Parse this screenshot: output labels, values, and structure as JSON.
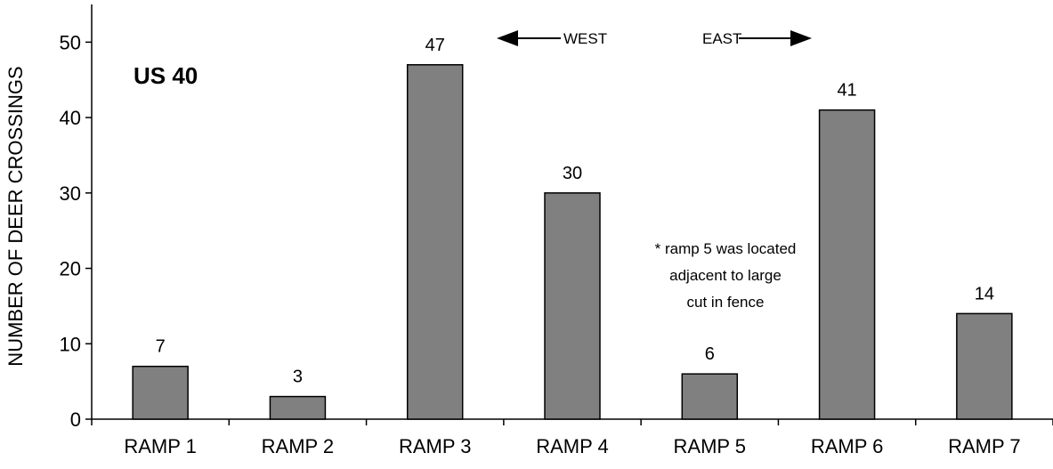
{
  "chart_data": {
    "type": "bar",
    "categories": [
      "RAMP 1",
      "RAMP 2",
      "RAMP 3",
      "RAMP 4",
      "RAMP 5",
      "RAMP 6",
      "RAMP 7"
    ],
    "values": [
      7,
      3,
      47,
      30,
      6,
      41,
      14
    ],
    "data_labels": [
      "7",
      "3",
      "47",
      "30",
      "6",
      "41",
      "14"
    ],
    "title": "",
    "xlabel": "",
    "ylabel": "NUMBER OF DEER CROSSINGS",
    "ylim": [
      0,
      55
    ],
    "yticks": [
      0,
      10,
      20,
      30,
      40,
      50
    ],
    "grid": false,
    "legend": "none",
    "bar_color": "#808080",
    "annotations": {
      "label": "US 40",
      "west": "WEST",
      "east": "EAST",
      "note_lines": [
        "* ramp 5 was located",
        "adjacent to large",
        "cut in fence"
      ]
    }
  }
}
